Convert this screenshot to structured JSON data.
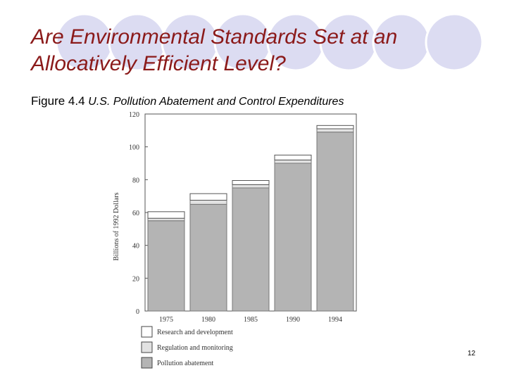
{
  "slide": {
    "title": "Are Environmental Standards Set at an Allocatively Efficient Level?",
    "figure_label": "Figure 4.4",
    "figure_title": "U.S. Pollution Abatement and Control Expenditures",
    "page_number": "12"
  },
  "colors": {
    "title": "#8b1a1a",
    "decoration_circles": "#dcdcf2",
    "pollution_abatement": "#b4b4b4",
    "regulation_and_monitoring": "#e2e2e2",
    "research_and_development": "#ffffff"
  },
  "chart_data": {
    "type": "bar",
    "stacked": true,
    "title": "U.S. Pollution Abatement and Control Expenditures",
    "xlabel": "",
    "ylabel": "Billions of 1992 Dollars",
    "ylim": [
      0,
      120
    ],
    "yticks": [
      0,
      20,
      40,
      60,
      80,
      100,
      120
    ],
    "grid": false,
    "legend": "bottom",
    "categories": [
      "1975",
      "1980",
      "1985",
      "1990",
      "1994"
    ],
    "series": [
      {
        "name": "Pollution abatement",
        "color": "#b4b4b4",
        "values": [
          55,
          65,
          75,
          90,
          109
        ]
      },
      {
        "name": "Regulation and monitoring",
        "color": "#e2e2e2",
        "values": [
          1.5,
          2.5,
          2,
          2,
          2
        ]
      },
      {
        "name": "Research and development",
        "color": "#ffffff",
        "values": [
          4,
          4,
          2.5,
          3,
          2
        ]
      }
    ],
    "legend_order": [
      "Research and development",
      "Regulation and monitoring",
      "Pollution abatement"
    ]
  }
}
